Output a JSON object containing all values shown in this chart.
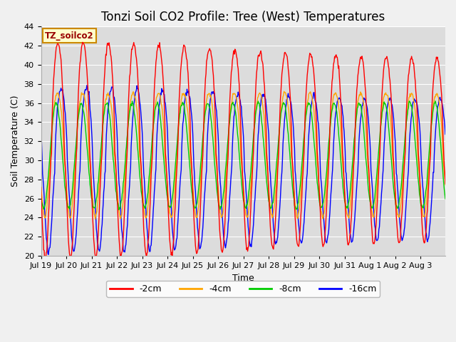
{
  "title": "Tonzi Soil CO2 Profile: Tree (West) Temperatures",
  "ylabel": "Soil Temperature (C)",
  "xlabel": "Time",
  "ylim": [
    20,
    44
  ],
  "colors": {
    "-2cm": "#ff0000",
    "-4cm": "#ffa500",
    "-8cm": "#00cc00",
    "-16cm": "#0000ff"
  },
  "legend_label": "TZ_soilco2",
  "legend_box_facecolor": "#ffffcc",
  "legend_box_edgecolor": "#cc8800",
  "bg_color": "#dcdcdc",
  "grid_color": "#ffffff",
  "title_fontsize": 12,
  "axis_label_fontsize": 9,
  "tick_fontsize": 8,
  "tick_labels": [
    "Jul 19",
    "Jul 20",
    "Jul 21",
    "Jul 22",
    "Jul 23",
    "Jul 24",
    "Jul 25",
    "Jul 26",
    "Jul 27",
    "Jul 28",
    "Jul 29",
    "Jul 30",
    "Jul 31",
    "Aug 1",
    "Aug 2",
    "Aug 3"
  ]
}
